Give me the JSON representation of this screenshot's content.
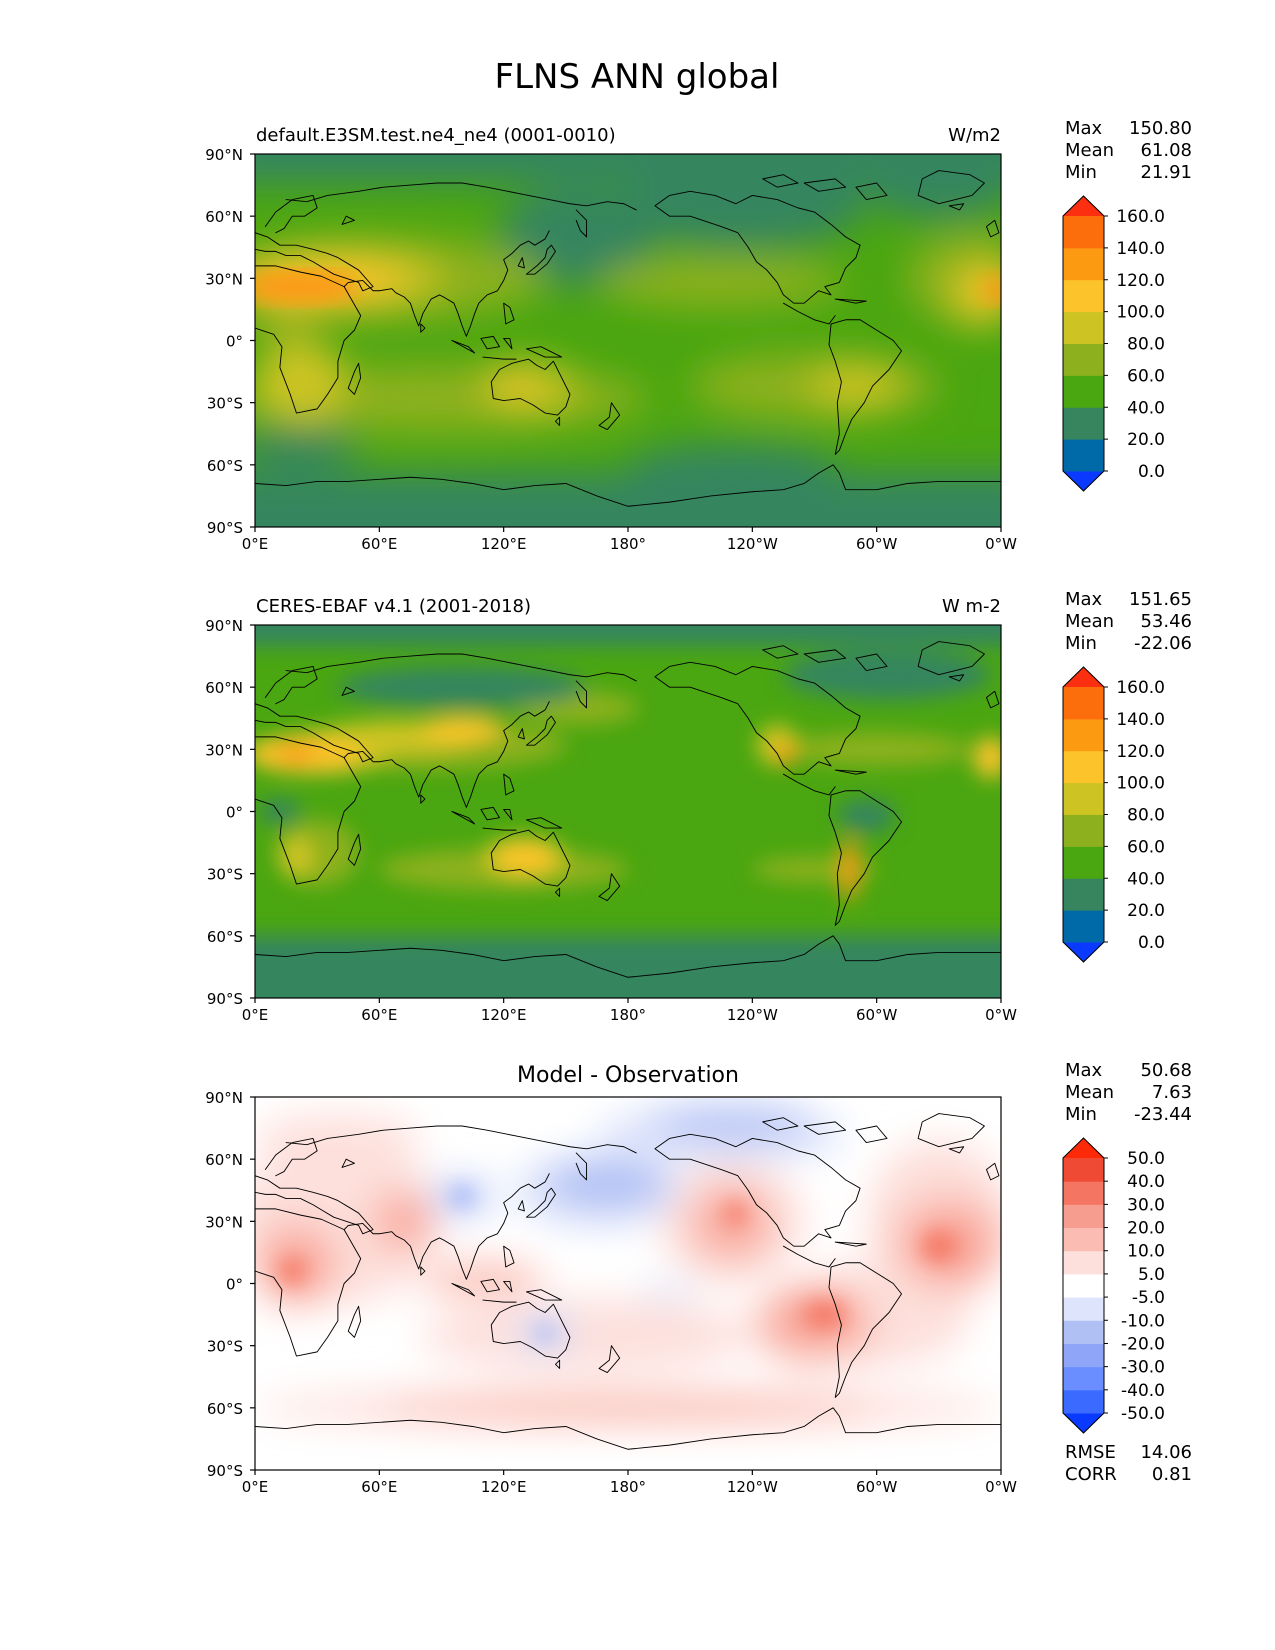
{
  "title": "FLNS ANN global",
  "lat_labels": [
    "90°N",
    "60°N",
    "30°N",
    "0°",
    "30°S",
    "60°S",
    "90°S"
  ],
  "lon_labels": [
    "0°E",
    "60°E",
    "120°E",
    "180°",
    "120°W",
    "60°W",
    "0°W"
  ],
  "panels": [
    {
      "id": "test",
      "left_title": "default.E3SM.test.ne4_ne4 (0001-0010)",
      "center_title": "",
      "units": "W/m2",
      "stats": [
        {
          "label": "Max",
          "value": "150.80"
        },
        {
          "label": "Mean",
          "value": "61.08"
        },
        {
          "label": "Min",
          "value": "21.91"
        }
      ],
      "colorbar": {
        "colors": [
          "#0a3aff",
          "#0069a8",
          "#36855f",
          "#4aa611",
          "#8db11e",
          "#cdc424",
          "#fcc42a",
          "#fc9a12",
          "#fc6d0c",
          "#fc3010"
        ],
        "labels": [
          "0.0",
          "20.0",
          "40.0",
          "60.0",
          "80.0",
          "100.0",
          "120.0",
          "140.0",
          "160.0"
        ]
      },
      "footer": []
    },
    {
      "id": "reference",
      "left_title": "CERES-EBAF v4.1 (2001-2018)",
      "center_title": "",
      "units": "W m-2",
      "stats": [
        {
          "label": "Max",
          "value": "151.65"
        },
        {
          "label": "Mean",
          "value": "53.46"
        },
        {
          "label": "Min",
          "value": "-22.06"
        }
      ],
      "colorbar": {
        "colors": [
          "#0a3aff",
          "#0069a8",
          "#36855f",
          "#4aa611",
          "#8db11e",
          "#cdc424",
          "#fcc42a",
          "#fc9a12",
          "#fc6d0c",
          "#fc3010"
        ],
        "labels": [
          "0.0",
          "20.0",
          "40.0",
          "60.0",
          "80.0",
          "100.0",
          "120.0",
          "140.0",
          "160.0"
        ]
      },
      "footer": []
    },
    {
      "id": "diff",
      "left_title": "",
      "center_title": "Model - Observation",
      "units": "",
      "stats": [
        {
          "label": "Max",
          "value": "50.68"
        },
        {
          "label": "Mean",
          "value": "7.63"
        },
        {
          "label": "Min",
          "value": "-23.44"
        }
      ],
      "colorbar": {
        "colors": [
          "#0a3aff",
          "#3a6aff",
          "#6a8eff",
          "#8fa6f8",
          "#b1c0f4",
          "#dde4fb",
          "#ffffff",
          "#fde0dc",
          "#fbbdb3",
          "#f79d8f",
          "#f47662",
          "#ee4a34",
          "#fc2a08"
        ],
        "labels": [
          "-50.0",
          "-40.0",
          "-30.0",
          "-20.0",
          "-10.0",
          "-5.0",
          "5.0",
          "10.0",
          "20.0",
          "30.0",
          "40.0",
          "50.0"
        ]
      },
      "footer": [
        {
          "label": "RMSE",
          "value": "14.06"
        },
        {
          "label": "CORR",
          "value": "0.81"
        }
      ]
    }
  ]
}
